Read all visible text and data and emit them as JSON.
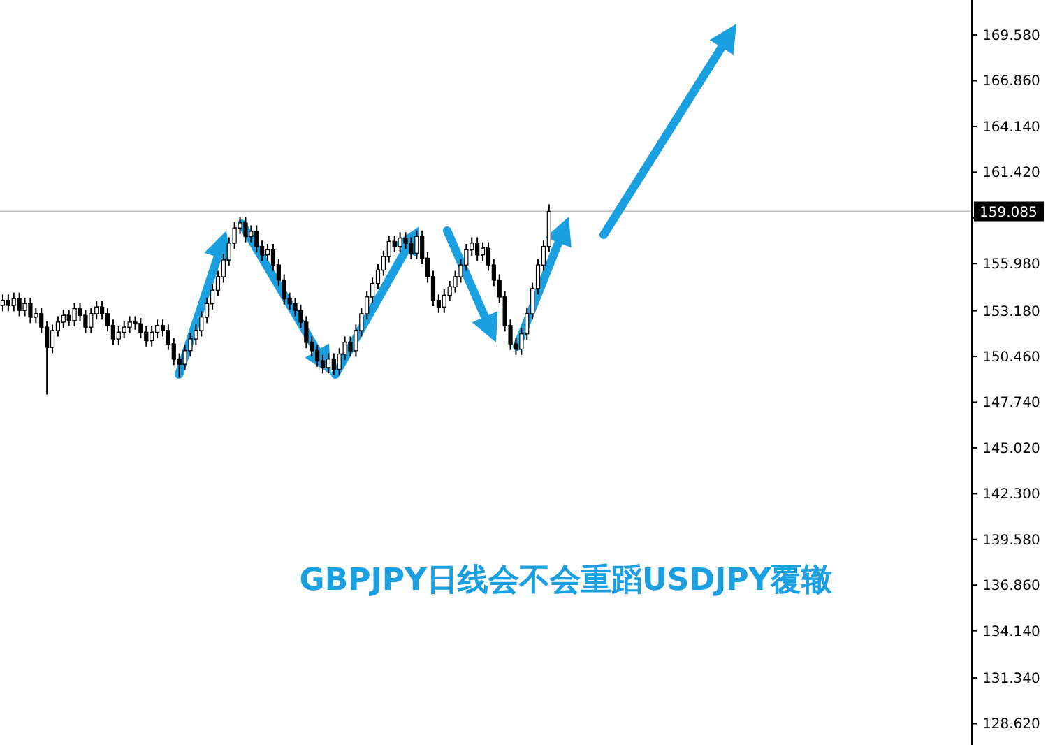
{
  "chart_data": {
    "type": "candlestick",
    "title": "GBPJPY日线会不会重蹈USDJPY覆辙",
    "categories": [
      null,
      null,
      null,
      null,
      null,
      null,
      null,
      null,
      null,
      null,
      null,
      null,
      null,
      null,
      null,
      null,
      null,
      null,
      null,
      null,
      null,
      null,
      null,
      null,
      null,
      null,
      null,
      null,
      null,
      null,
      null,
      null,
      null,
      null,
      null,
      null,
      null,
      null,
      null,
      null,
      null,
      null,
      null,
      null,
      null,
      null,
      null,
      null,
      null,
      null,
      null,
      null,
      null,
      null,
      null,
      null,
      null,
      null,
      null,
      null,
      null,
      null,
      null,
      null,
      null,
      null,
      null,
      null,
      null,
      null,
      null,
      null,
      null,
      null,
      null,
      null,
      null,
      null,
      null,
      null,
      null,
      null,
      null,
      null,
      null,
      null,
      null,
      null,
      null,
      null,
      null,
      null,
      null,
      null,
      null,
      null,
      null,
      null,
      null,
      null,
      null,
      null,
      null,
      null,
      null,
      null,
      null,
      null,
      null,
      null,
      null,
      null,
      null,
      null,
      null,
      null,
      null,
      null,
      null,
      null,
      null,
      null,
      null,
      null,
      null,
      null,
      null,
      null,
      null,
      null,
      null,
      null,
      null,
      null,
      null,
      null,
      null,
      null,
      null,
      null,
      null,
      null,
      null,
      null,
      null,
      null,
      null,
      null,
      null,
      null,
      null,
      null,
      null,
      null,
      null,
      null,
      null,
      null,
      null,
      null,
      null,
      null,
      null,
      null,
      null,
      null,
      null,
      null,
      null,
      null,
      null,
      null,
      null,
      null,
      null,
      null
    ],
    "ohlc": [
      [
        153.5,
        154.15,
        153.15,
        153.8
      ],
      [
        153.8,
        154.15,
        153.15,
        153.5
      ],
      [
        153.5,
        154.25,
        153.15,
        153.9
      ],
      [
        153.9,
        154.25,
        152.85,
        153.2
      ],
      [
        153.2,
        153.95,
        152.85,
        153.6
      ],
      [
        153.6,
        153.95,
        152.45,
        152.8
      ],
      [
        152.8,
        153.35,
        152.45,
        153.0
      ],
      [
        153.0,
        153.35,
        151.85,
        152.2
      ],
      [
        152.2,
        152.55,
        148.2,
        151.0
      ],
      [
        151.0,
        152.35,
        150.65,
        152.0
      ],
      [
        152.0,
        152.85,
        151.65,
        152.5
      ],
      [
        152.5,
        153.25,
        152.15,
        152.9
      ],
      [
        152.9,
        153.25,
        152.25,
        152.6
      ],
      [
        152.6,
        153.65,
        152.25,
        153.3
      ],
      [
        153.3,
        153.65,
        152.55,
        152.9
      ],
      [
        152.9,
        153.25,
        151.85,
        152.2
      ],
      [
        152.2,
        153.35,
        151.85,
        153.0
      ],
      [
        153.0,
        153.75,
        152.65,
        153.4
      ],
      [
        153.4,
        153.75,
        152.65,
        153.0
      ],
      [
        153.0,
        153.35,
        151.95,
        152.3
      ],
      [
        152.3,
        152.65,
        151.15,
        151.5
      ],
      [
        151.5,
        152.25,
        151.15,
        151.9
      ],
      [
        151.9,
        152.55,
        151.55,
        152.2
      ],
      [
        152.2,
        152.85,
        151.85,
        152.5
      ],
      [
        152.5,
        152.85,
        152.05,
        152.4
      ],
      [
        152.4,
        152.75,
        151.55,
        151.9
      ],
      [
        151.9,
        152.25,
        151.05,
        151.4
      ],
      [
        151.4,
        152.25,
        151.05,
        151.9
      ],
      [
        151.9,
        152.65,
        151.55,
        152.3
      ],
      [
        152.3,
        152.65,
        151.65,
        152.0
      ],
      [
        152.0,
        152.35,
        150.85,
        151.2
      ],
      [
        151.2,
        151.55,
        149.95,
        150.3
      ],
      [
        150.3,
        150.65,
        149.2,
        150.0
      ],
      [
        150.0,
        151.15,
        149.65,
        150.8
      ],
      [
        150.8,
        151.85,
        150.45,
        151.5
      ],
      [
        151.5,
        152.35,
        151.15,
        152.0
      ],
      [
        152.0,
        153.15,
        151.65,
        152.8
      ],
      [
        152.8,
        153.95,
        152.45,
        153.6
      ],
      [
        153.6,
        154.75,
        153.25,
        154.4
      ],
      [
        154.4,
        155.55,
        154.05,
        155.2
      ],
      [
        155.2,
        156.55,
        154.85,
        156.2
      ],
      [
        156.2,
        157.55,
        155.85,
        157.2
      ],
      [
        157.2,
        158.45,
        156.85,
        158.1
      ],
      [
        158.1,
        158.75,
        157.75,
        158.4
      ],
      [
        158.4,
        158.75,
        157.25,
        157.6
      ],
      [
        157.6,
        158.25,
        157.25,
        157.9
      ],
      [
        157.9,
        158.25,
        156.65,
        157.0
      ],
      [
        157.0,
        157.35,
        156.15,
        156.5
      ],
      [
        156.5,
        157.15,
        156.15,
        156.8
      ],
      [
        156.8,
        157.15,
        155.55,
        155.9
      ],
      [
        155.9,
        156.25,
        154.65,
        155.0
      ],
      [
        155.0,
        155.35,
        153.55,
        153.9
      ],
      [
        153.9,
        154.25,
        153.25,
        153.6
      ],
      [
        153.6,
        153.95,
        152.85,
        153.2
      ],
      [
        153.2,
        153.55,
        152.15,
        152.5
      ],
      [
        152.5,
        152.85,
        150.95,
        151.3
      ],
      [
        151.3,
        151.65,
        150.45,
        150.8
      ],
      [
        150.8,
        151.15,
        149.85,
        150.2
      ],
      [
        150.2,
        150.55,
        149.45,
        149.8
      ],
      [
        149.8,
        150.65,
        149.45,
        150.3
      ],
      [
        150.3,
        150.65,
        149.35,
        149.7
      ],
      [
        149.7,
        150.95,
        149.35,
        150.6
      ],
      [
        150.6,
        151.65,
        150.25,
        151.3
      ],
      [
        151.3,
        151.65,
        150.45,
        150.8
      ],
      [
        150.8,
        152.35,
        150.45,
        152.0
      ],
      [
        152.0,
        153.35,
        151.65,
        153.0
      ],
      [
        153.0,
        154.35,
        152.65,
        154.0
      ],
      [
        154.0,
        155.15,
        153.65,
        154.8
      ],
      [
        154.8,
        155.95,
        154.45,
        155.6
      ],
      [
        155.6,
        156.75,
        155.25,
        156.4
      ],
      [
        156.4,
        157.65,
        156.05,
        157.3
      ],
      [
        157.3,
        157.65,
        156.65,
        157.0
      ],
      [
        157.0,
        157.85,
        156.65,
        157.5
      ],
      [
        157.5,
        157.85,
        156.85,
        157.2
      ],
      [
        157.2,
        157.55,
        156.25,
        156.6
      ],
      [
        156.6,
        157.95,
        156.25,
        157.6
      ],
      [
        157.6,
        157.95,
        155.95,
        156.3
      ],
      [
        156.3,
        156.65,
        154.85,
        155.2
      ],
      [
        155.2,
        155.55,
        153.45,
        153.8
      ],
      [
        153.8,
        154.15,
        153.05,
        153.4
      ],
      [
        153.4,
        154.45,
        153.05,
        154.1
      ],
      [
        154.1,
        154.95,
        153.75,
        154.6
      ],
      [
        154.6,
        155.55,
        154.25,
        155.2
      ],
      [
        155.2,
        156.25,
        154.85,
        155.9
      ],
      [
        155.9,
        157.15,
        155.55,
        156.8
      ],
      [
        156.8,
        157.55,
        156.45,
        157.2
      ],
      [
        157.2,
        157.55,
        156.15,
        156.5
      ],
      [
        156.5,
        157.25,
        156.15,
        156.9
      ],
      [
        156.9,
        157.25,
        155.55,
        155.9
      ],
      [
        155.9,
        156.25,
        154.65,
        155.0
      ],
      [
        155.0,
        155.35,
        153.65,
        154.0
      ],
      [
        154.0,
        154.35,
        151.95,
        152.3
      ],
      [
        152.3,
        152.65,
        150.85,
        151.2
      ],
      [
        151.2,
        151.55,
        150.55,
        150.9
      ],
      [
        150.9,
        152.15,
        150.55,
        151.8
      ],
      [
        151.8,
        153.35,
        151.45,
        153.0
      ],
      [
        153.0,
        154.85,
        152.65,
        154.5
      ],
      [
        154.5,
        156.25,
        154.15,
        155.9
      ],
      [
        155.9,
        157.35,
        155.55,
        157.0
      ],
      [
        157.0,
        159.5,
        156.65,
        159.08
      ],
      null,
      null,
      null,
      null,
      null,
      null,
      null,
      null,
      null,
      null,
      null,
      null,
      null,
      null,
      null,
      null,
      null,
      null,
      null,
      null,
      null,
      null,
      null,
      null,
      null,
      null,
      null,
      null,
      null,
      null,
      null,
      null,
      null,
      null,
      null,
      null,
      null,
      null,
      null,
      null,
      null,
      null,
      null,
      null,
      null,
      null,
      null,
      null,
      null,
      null,
      null,
      null,
      null,
      null,
      null,
      null,
      null,
      null,
      null,
      null,
      null,
      null,
      null,
      null,
      null,
      null,
      null,
      null,
      null,
      null,
      null,
      null,
      null,
      null,
      null,
      null
    ],
    "color": "#000000",
    "ylim": [
      127.35,
      171.66
    ],
    "yticks": [
      {
        "value": 169.58,
        "label": "169.580"
      },
      {
        "value": 166.86,
        "label": "166.860"
      },
      {
        "value": 164.14,
        "label": "164.140"
      },
      {
        "value": 161.42,
        "label": "161.420"
      },
      {
        "value": 158.7,
        "label": null
      },
      {
        "value": 155.98,
        "label": "155.980"
      },
      {
        "value": 153.18,
        "label": "153.180"
      },
      {
        "value": 150.46,
        "label": "150.460"
      },
      {
        "value": 147.74,
        "label": "147.740"
      },
      {
        "value": 145.02,
        "label": "145.020"
      },
      {
        "value": 142.3,
        "label": "142.300"
      },
      {
        "value": 139.58,
        "label": "139.580"
      },
      {
        "value": 136.86,
        "label": "136.860"
      },
      {
        "value": 134.14,
        "label": "134.140"
      },
      {
        "value": 131.34,
        "label": "131.340"
      },
      {
        "value": 128.62,
        "label": "128.620"
      }
    ],
    "ref_lines": [
      {
        "axis": "y",
        "value": 159.085,
        "label": "159.085",
        "color": "#c0c0c0"
      }
    ]
  }
}
